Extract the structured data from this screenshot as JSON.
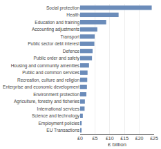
{
  "chart_data": {
    "type": "bar",
    "orientation": "horizontal",
    "xlabel": "£ billion",
    "categories": [
      "Social protection",
      "Health",
      "Education and training",
      "Accounting adjustments",
      "Transport",
      "Public sector debt interest",
      "Defence",
      "Public order and safety",
      "Housing and community amenities",
      "Public and common services",
      "Recreation, culture and religion",
      "Enterprise and economic development",
      "Environment protection",
      "Agriculture, forestry and fisheries",
      "International services",
      "Science and technology",
      "Employment policies",
      "EU Transactions"
    ],
    "values": [
      24.2,
      13.0,
      8.8,
      5.8,
      4.9,
      4.8,
      4.2,
      4.0,
      3.0,
      2.5,
      2.4,
      2.3,
      2.1,
      1.6,
      1.5,
      0.9,
      0.5,
      0.3
    ],
    "color": "#6b8cba",
    "xlim": [
      0,
      25
    ],
    "xticks": [
      {
        "value": 0,
        "label": "£0"
      },
      {
        "value": 5,
        "label": "£5"
      },
      {
        "value": 10,
        "label": "£10"
      },
      {
        "value": 15,
        "label": "£15"
      },
      {
        "value": 20,
        "label": "£20"
      },
      {
        "value": 25,
        "label": "£25"
      }
    ],
    "grid": true
  }
}
